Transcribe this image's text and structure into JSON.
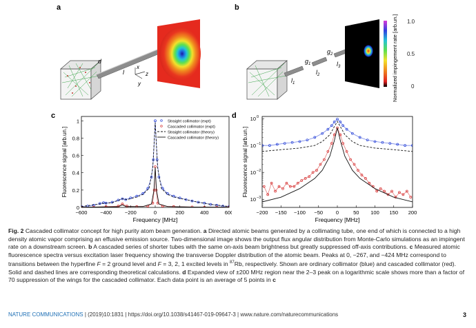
{
  "panels": {
    "a": {
      "label": "a",
      "callouts": [
        "d",
        "l",
        "x",
        "y",
        "z"
      ]
    },
    "b": {
      "label": "b",
      "callouts": [
        "g",
        "g",
        "l",
        "l",
        "l"
      ],
      "callout_subscripts": [
        "1",
        "2",
        "1",
        "2",
        "3"
      ],
      "colorbar": {
        "label": "Normalized impingement rate [arb.un.]",
        "ticks": [
          "1.0",
          "0.5",
          "0"
        ]
      }
    }
  },
  "chart_data": [
    {
      "panel": "c",
      "type": "line",
      "xlabel": "Frequency [MHz]",
      "ylabel": "Fluorescence signal [arb.un.]",
      "xlim": [
        -600,
        600
      ],
      "ylim": [
        0,
        1.05
      ],
      "xticks": [
        -600,
        -400,
        -200,
        0,
        200,
        400,
        600
      ],
      "yticks": [
        0,
        0.2,
        0.4,
        0.6,
        0.8,
        1
      ],
      "ytick_labels": [
        "0",
        "0.2",
        "0.4",
        "0.6",
        "0.8",
        "1"
      ],
      "legend": [
        "Straight collimator (expt)",
        "Cascaded collimator (expt)",
        "Straight collimator (theory)",
        "Cascaded collimator (theory)"
      ],
      "legend_position": "top-right",
      "series": [
        {
          "name": "Straight collimator (expt)",
          "style": "markers",
          "color": "#1f3bd6",
          "x": [
            -600,
            -550,
            -500,
            -450,
            -420,
            -400,
            -350,
            -300,
            -267,
            -240,
            -200,
            -150,
            -100,
            -60,
            -30,
            -15,
            0,
            15,
            30,
            60,
            100,
            150,
            200,
            250,
            300,
            350,
            400,
            450,
            500,
            550,
            600
          ],
          "y": [
            0.01,
            0.015,
            0.025,
            0.045,
            0.055,
            0.05,
            0.06,
            0.085,
            0.1,
            0.09,
            0.11,
            0.13,
            0.16,
            0.22,
            0.35,
            0.55,
            1.0,
            0.55,
            0.35,
            0.22,
            0.16,
            0.13,
            0.11,
            0.09,
            0.075,
            0.06,
            0.05,
            0.035,
            0.025,
            0.015,
            0.01
          ]
        },
        {
          "name": "Cascaded collimator (expt)",
          "style": "markers",
          "color": "#d42a2a",
          "x": [
            -600,
            -500,
            -400,
            -300,
            -267,
            -230,
            -150,
            -60,
            -20,
            -8,
            0,
            8,
            20,
            60,
            150,
            300,
            400,
            500,
            600
          ],
          "y": [
            0.003,
            0.003,
            0.01,
            0.015,
            0.04,
            0.015,
            0.01,
            0.015,
            0.05,
            0.2,
            0.47,
            0.2,
            0.05,
            0.015,
            0.01,
            0.005,
            0.003,
            0.003,
            0.003
          ]
        },
        {
          "name": "Straight collimator (theory)",
          "style": "dashed",
          "color": "#111111",
          "x": [
            -600,
            -500,
            -430,
            -424,
            -418,
            -350,
            -300,
            -267,
            -230,
            -150,
            -100,
            -50,
            -20,
            0,
            20,
            50,
            100,
            150,
            250,
            350,
            450,
            600
          ],
          "y": [
            0.01,
            0.03,
            0.045,
            0.05,
            0.045,
            0.055,
            0.08,
            0.1,
            0.09,
            0.12,
            0.15,
            0.22,
            0.45,
            0.98,
            0.45,
            0.22,
            0.15,
            0.12,
            0.09,
            0.06,
            0.035,
            0.01
          ]
        },
        {
          "name": "Cascaded collimator (theory)",
          "style": "solid",
          "color": "#111111",
          "x": [
            -600,
            -300,
            -267,
            -240,
            -100,
            -30,
            -10,
            0,
            10,
            30,
            100,
            300,
            600
          ],
          "y": [
            0.002,
            0.008,
            0.03,
            0.01,
            0.01,
            0.04,
            0.2,
            0.46,
            0.2,
            0.04,
            0.01,
            0.004,
            0.002
          ]
        }
      ]
    },
    {
      "panel": "d",
      "type": "line",
      "xlabel": "Frequency [MHz]",
      "ylabel": "Fluorescence signal [arb.un.]",
      "xlim": [
        -200,
        200
      ],
      "ylim": [
        0.0005,
        1.2
      ],
      "yscale": "log",
      "xticks": [
        -200,
        -150,
        -100,
        -50,
        0,
        50,
        100,
        150,
        200
      ],
      "yticks": [
        0.001,
        0.01,
        0.1,
        1
      ],
      "ytick_labels": [
        "10",
        "10",
        "10",
        "10"
      ],
      "ytick_exponents": [
        "-3",
        "-2",
        "-1",
        "0"
      ],
      "series": [
        {
          "name": "Straight collimator (expt)",
          "style": "markers",
          "color": "#1f3bd6",
          "x": [
            -200,
            -180,
            -160,
            -140,
            -120,
            -100,
            -80,
            -60,
            -40,
            -25,
            -15,
            -8,
            0,
            8,
            15,
            25,
            40,
            60,
            80,
            100,
            120,
            140,
            160,
            180,
            200
          ],
          "y": [
            0.1,
            0.1,
            0.11,
            0.12,
            0.13,
            0.14,
            0.16,
            0.2,
            0.28,
            0.4,
            0.55,
            0.75,
            0.95,
            0.75,
            0.55,
            0.4,
            0.28,
            0.2,
            0.16,
            0.14,
            0.13,
            0.12,
            0.11,
            0.1,
            0.1
          ]
        },
        {
          "name": "Cascaded collimator (expt)",
          "style": "markers",
          "color": "#d42a2a",
          "x": [
            -195,
            -185,
            -175,
            -165,
            -155,
            -145,
            -135,
            -125,
            -115,
            -105,
            -95,
            -85,
            -75,
            -65,
            -55,
            -45,
            -35,
            -25,
            -15,
            -8,
            0,
            8,
            15,
            25,
            35,
            45,
            55,
            65,
            75,
            85,
            95,
            105,
            115,
            125,
            135,
            145,
            155,
            165,
            175,
            185,
            195
          ],
          "y": [
            0.003,
            0.0015,
            0.004,
            0.002,
            0.003,
            0.0025,
            0.004,
            0.003,
            0.003,
            0.004,
            0.005,
            0.006,
            0.007,
            0.01,
            0.012,
            0.02,
            0.03,
            0.06,
            0.12,
            0.25,
            0.45,
            0.25,
            0.12,
            0.06,
            0.03,
            0.02,
            0.012,
            0.008,
            0.006,
            0.004,
            0.003,
            0.002,
            0.0025,
            0.002,
            0.0015,
            0.002,
            0.0012,
            0.0018,
            0.0015,
            0.002,
            0.0012
          ]
        },
        {
          "name": "Straight collimator (theory)",
          "style": "dashed",
          "color": "#111111",
          "x": [
            -200,
            -150,
            -100,
            -60,
            -40,
            -20,
            -8,
            0,
            8,
            20,
            40,
            60,
            100,
            150,
            200
          ],
          "y": [
            0.06,
            0.07,
            0.08,
            0.1,
            0.14,
            0.25,
            0.5,
            0.78,
            0.5,
            0.25,
            0.14,
            0.1,
            0.08,
            0.07,
            0.06
          ]
        },
        {
          "name": "Cascaded collimator (theory)",
          "style": "solid",
          "color": "#111111",
          "x": [
            -200,
            -150,
            -100,
            -60,
            -40,
            -20,
            -8,
            0,
            8,
            20,
            40,
            60,
            100,
            150,
            200
          ],
          "y": [
            0.0008,
            0.0012,
            0.0025,
            0.006,
            0.012,
            0.04,
            0.15,
            0.45,
            0.15,
            0.04,
            0.012,
            0.006,
            0.0025,
            0.0012,
            0.0008
          ]
        }
      ]
    }
  ],
  "caption": {
    "lead": "Fig. 2",
    "body_1": " Cascaded collimator concept for high purity atom beam generation. ",
    "ref_a": "a",
    "body_2": " Directed atomic beams generated by a collimating tube, one end of which is connected to a high density atomic vapor comprising an effusive emission source. Two-dimensional image shows the output flux angular distribution from Monte-Carlo simulations as an impingent rate on a downstream screen. ",
    "ref_b": "b",
    "body_3": " A cascaded series of shorter tubes with the same on-axis beam brightness but greatly suppressed off-axis contributions. ",
    "ref_c": "c",
    "body_4": " Measured atomic fluorescence spectra versus excitation laser frequency showing the transverse Doppler distribution of the atomic beam. Peaks at 0, −267, and −424 MHz correspond to transitions between the hyperfine ",
    "f_eq": "F",
    "body_5": " = 2 ground level and ",
    "f_eq_2": "F",
    "body_6": " = 3, 2, 1 excited levels in ",
    "rb_mass": "87",
    "body_7": "Rb, respectively. Shown are ordinary collimator (blue) and cascaded collimator (red). Solid and dashed lines are corresponding theoretical calculations. ",
    "ref_d": "d",
    "body_8": " Expanded view of ±200 MHz region near the 2–3 peak on a logarithmic scale shows more than a factor of 70 suppression of the wings for the cascaded collimator. Each data point is an average of 5 points in ",
    "ref_c2": "c"
  },
  "footer": {
    "journal": "NATURE COMMUNICATIONS",
    "citation": " | (2019)10:1831 | https://doi.org/10.1038/s41467-019-09647-3 | www.nature.com/naturecommunications",
    "page": "3"
  },
  "colors": {
    "straight": "#1f3bd6",
    "cascaded": "#d42a2a",
    "theory": "#111111",
    "journal": "#1e6fb5"
  }
}
